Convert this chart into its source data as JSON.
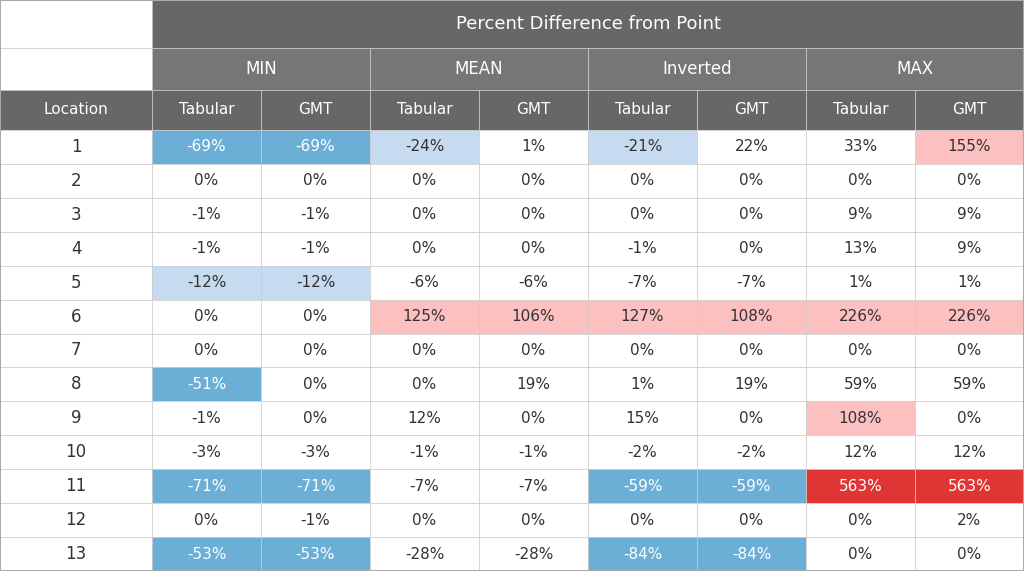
{
  "title_main": "Percent Difference from Point",
  "col_groups": [
    "MIN",
    "MEAN",
    "Inverted",
    "MAX"
  ],
  "locations": [
    1,
    2,
    3,
    4,
    5,
    6,
    7,
    8,
    9,
    10,
    11,
    12,
    13
  ],
  "data": [
    [
      "-69%",
      "-69%",
      "-24%",
      "1%",
      "-21%",
      "22%",
      "33%",
      "155%"
    ],
    [
      "0%",
      "0%",
      "0%",
      "0%",
      "0%",
      "0%",
      "0%",
      "0%"
    ],
    [
      "-1%",
      "-1%",
      "0%",
      "0%",
      "0%",
      "0%",
      "9%",
      "9%"
    ],
    [
      "-1%",
      "-1%",
      "0%",
      "0%",
      "-1%",
      "0%",
      "13%",
      "9%"
    ],
    [
      "-12%",
      "-12%",
      "-6%",
      "-6%",
      "-7%",
      "-7%",
      "1%",
      "1%"
    ],
    [
      "0%",
      "0%",
      "125%",
      "106%",
      "127%",
      "108%",
      "226%",
      "226%"
    ],
    [
      "0%",
      "0%",
      "0%",
      "0%",
      "0%",
      "0%",
      "0%",
      "0%"
    ],
    [
      "-51%",
      "0%",
      "0%",
      "19%",
      "1%",
      "19%",
      "59%",
      "59%"
    ],
    [
      "-1%",
      "0%",
      "12%",
      "0%",
      "15%",
      "0%",
      "108%",
      "0%"
    ],
    [
      "-3%",
      "-3%",
      "-1%",
      "-1%",
      "-2%",
      "-2%",
      "12%",
      "12%"
    ],
    [
      "-71%",
      "-71%",
      "-7%",
      "-7%",
      "-59%",
      "-59%",
      "563%",
      "563%"
    ],
    [
      "0%",
      "-1%",
      "0%",
      "0%",
      "0%",
      "0%",
      "0%",
      "2%"
    ],
    [
      "-53%",
      "-53%",
      "-28%",
      "-28%",
      "-84%",
      "-84%",
      "0%",
      "0%"
    ]
  ],
  "cell_colors": [
    [
      "#6baed6",
      "#6baed6",
      "#c6dbef",
      "#ffffff",
      "#c6dbef",
      "#ffffff",
      "#ffffff",
      "#fcc0c0"
    ],
    [
      "#ffffff",
      "#ffffff",
      "#ffffff",
      "#ffffff",
      "#ffffff",
      "#ffffff",
      "#ffffff",
      "#ffffff"
    ],
    [
      "#ffffff",
      "#ffffff",
      "#ffffff",
      "#ffffff",
      "#ffffff",
      "#ffffff",
      "#ffffff",
      "#ffffff"
    ],
    [
      "#ffffff",
      "#ffffff",
      "#ffffff",
      "#ffffff",
      "#ffffff",
      "#ffffff",
      "#ffffff",
      "#ffffff"
    ],
    [
      "#c6dbef",
      "#c6dbef",
      "#ffffff",
      "#ffffff",
      "#ffffff",
      "#ffffff",
      "#ffffff",
      "#ffffff"
    ],
    [
      "#ffffff",
      "#ffffff",
      "#fcc0c0",
      "#fcc0c0",
      "#fcc0c0",
      "#fcc0c0",
      "#fcc0c0",
      "#fcc0c0"
    ],
    [
      "#ffffff",
      "#ffffff",
      "#ffffff",
      "#ffffff",
      "#ffffff",
      "#ffffff",
      "#ffffff",
      "#ffffff"
    ],
    [
      "#6baed6",
      "#ffffff",
      "#ffffff",
      "#ffffff",
      "#ffffff",
      "#ffffff",
      "#ffffff",
      "#ffffff"
    ],
    [
      "#ffffff",
      "#ffffff",
      "#ffffff",
      "#ffffff",
      "#ffffff",
      "#ffffff",
      "#fcc0c0",
      "#ffffff"
    ],
    [
      "#ffffff",
      "#ffffff",
      "#ffffff",
      "#ffffff",
      "#ffffff",
      "#ffffff",
      "#ffffff",
      "#ffffff"
    ],
    [
      "#6baed6",
      "#6baed6",
      "#ffffff",
      "#ffffff",
      "#6baed6",
      "#6baed6",
      "#e03535",
      "#e03535"
    ],
    [
      "#ffffff",
      "#ffffff",
      "#ffffff",
      "#ffffff",
      "#ffffff",
      "#ffffff",
      "#ffffff",
      "#ffffff"
    ],
    [
      "#6baed6",
      "#6baed6",
      "#ffffff",
      "#ffffff",
      "#6baed6",
      "#6baed6",
      "#ffffff",
      "#ffffff"
    ]
  ],
  "text_colors": [
    [
      "#ffffff",
      "#ffffff",
      "#333333",
      "#333333",
      "#333333",
      "#333333",
      "#333333",
      "#333333"
    ],
    [
      "#333333",
      "#333333",
      "#333333",
      "#333333",
      "#333333",
      "#333333",
      "#333333",
      "#333333"
    ],
    [
      "#333333",
      "#333333",
      "#333333",
      "#333333",
      "#333333",
      "#333333",
      "#333333",
      "#333333"
    ],
    [
      "#333333",
      "#333333",
      "#333333",
      "#333333",
      "#333333",
      "#333333",
      "#333333",
      "#333333"
    ],
    [
      "#333333",
      "#333333",
      "#333333",
      "#333333",
      "#333333",
      "#333333",
      "#333333",
      "#333333"
    ],
    [
      "#333333",
      "#333333",
      "#333333",
      "#333333",
      "#333333",
      "#333333",
      "#333333",
      "#333333"
    ],
    [
      "#333333",
      "#333333",
      "#333333",
      "#333333",
      "#333333",
      "#333333",
      "#333333",
      "#333333"
    ],
    [
      "#ffffff",
      "#333333",
      "#333333",
      "#333333",
      "#333333",
      "#333333",
      "#333333",
      "#333333"
    ],
    [
      "#333333",
      "#333333",
      "#333333",
      "#333333",
      "#333333",
      "#333333",
      "#333333",
      "#333333"
    ],
    [
      "#333333",
      "#333333",
      "#333333",
      "#333333",
      "#333333",
      "#333333",
      "#333333",
      "#333333"
    ],
    [
      "#ffffff",
      "#ffffff",
      "#333333",
      "#333333",
      "#ffffff",
      "#ffffff",
      "#ffffff",
      "#ffffff"
    ],
    [
      "#333333",
      "#333333",
      "#333333",
      "#333333",
      "#333333",
      "#333333",
      "#333333",
      "#333333"
    ],
    [
      "#ffffff",
      "#ffffff",
      "#333333",
      "#333333",
      "#ffffff",
      "#ffffff",
      "#333333",
      "#333333"
    ]
  ],
  "header_bg": "#676767",
  "header_text": "#ffffff",
  "subheader_bg": "#767676",
  "subheader_text": "#ffffff",
  "col_header_bg": "#676767",
  "col_header_text": "#ffffff",
  "border_color": "#cccccc",
  "outer_border": "#aaaaaa",
  "topleft_bg": "#ffffff"
}
